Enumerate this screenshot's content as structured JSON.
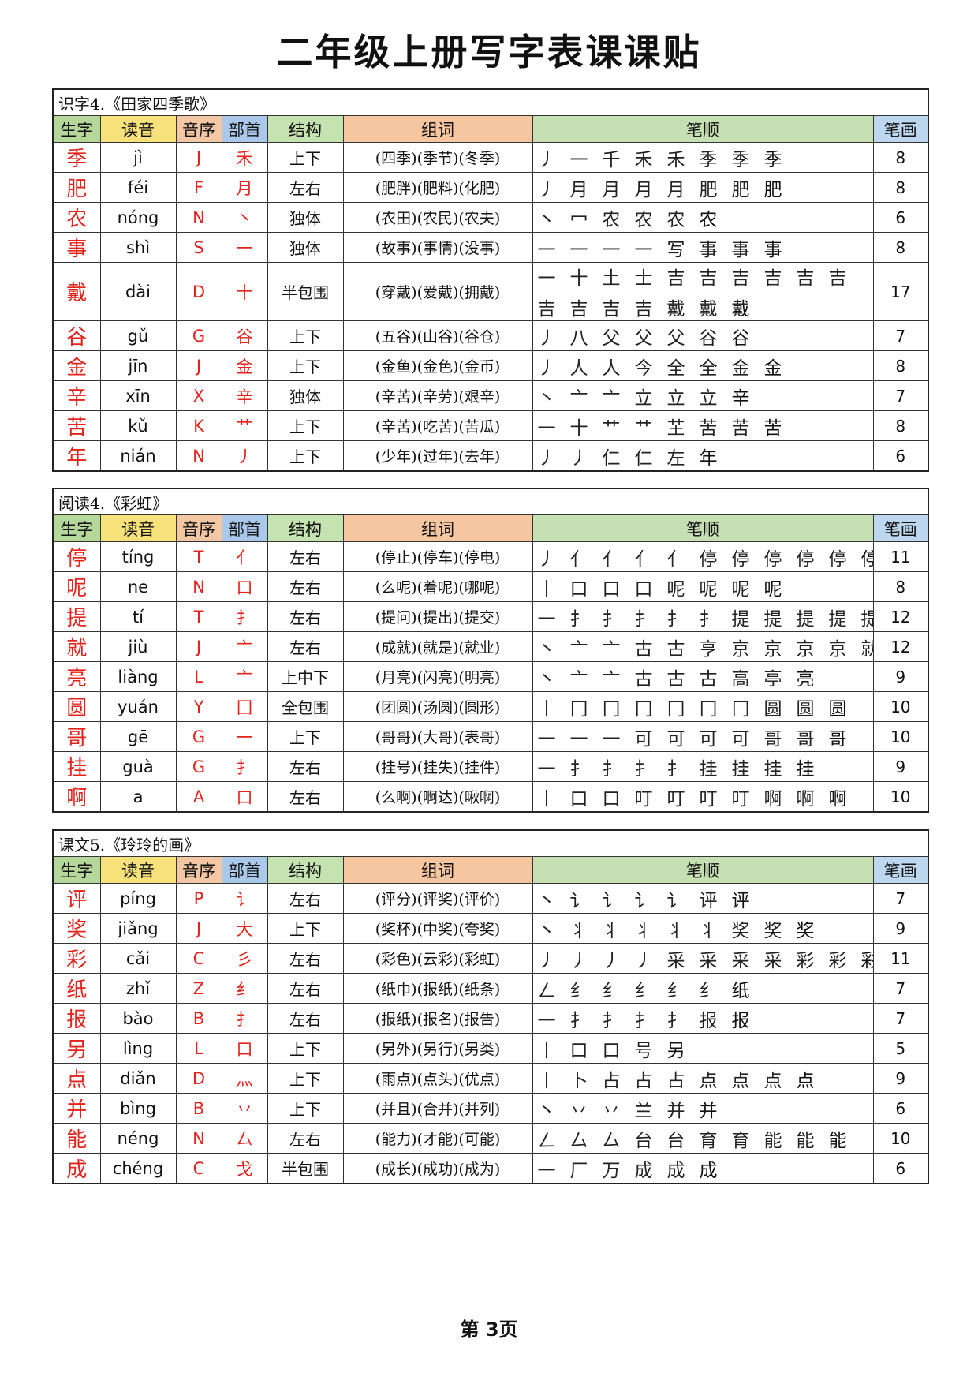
{
  "title": "二年级上册写字表课课贴",
  "headers": {
    "char": "生字",
    "pinyin": "读音",
    "order": "音序",
    "radical": "部首",
    "struct": "结构",
    "words": "组词",
    "strokes": "笔顺",
    "count": "笔画"
  },
  "sections": [
    {
      "title": "识字4.《田家四季歌》",
      "rows": [
        {
          "char": "季",
          "pinyin": "jì",
          "order": "J",
          "radical": "禾",
          "struct": "上下",
          "words": "(四季)(季节)(冬季)",
          "strokes": [
            "丿",
            "一",
            "千",
            "禾",
            "禾",
            "季",
            "季",
            "季"
          ],
          "count": "8"
        },
        {
          "char": "肥",
          "pinyin": "féi",
          "order": "F",
          "radical": "月",
          "struct": "左右",
          "words": "(肥胖)(肥料)(化肥)",
          "strokes": [
            "丿",
            "月",
            "月",
            "月",
            "月",
            "肥",
            "肥",
            "肥"
          ],
          "count": "8"
        },
        {
          "char": "农",
          "pinyin": "nóng",
          "order": "N",
          "radical": "丶",
          "struct": "独体",
          "words": "(农田)(农民)(农夫)",
          "strokes": [
            "丶",
            "冖",
            "农",
            "农",
            "农",
            "农"
          ],
          "count": "6"
        },
        {
          "char": "事",
          "pinyin": "shì",
          "order": "S",
          "radical": "一",
          "struct": "独体",
          "words": "(故事)(事情)(没事)",
          "strokes": [
            "一",
            "一",
            "一",
            "一",
            "写",
            "事",
            "事",
            "事"
          ],
          "count": "8"
        },
        {
          "char": "戴",
          "pinyin": "dài",
          "order": "D",
          "radical": "十",
          "struct": "半包围",
          "words": "(穿戴)(爱戴)(拥戴)",
          "strokes": [
            "一",
            "十",
            "土",
            "士",
            "吉",
            "吉",
            "吉",
            "吉",
            "吉",
            "吉"
          ],
          "strokes2": [
            "吉",
            "吉",
            "吉",
            "吉",
            "戴",
            "戴",
            "戴"
          ],
          "count": "17"
        },
        {
          "char": "谷",
          "pinyin": "gǔ",
          "order": "G",
          "radical": "谷",
          "struct": "上下",
          "words": "(五谷)(山谷)(谷仓)",
          "strokes": [
            "丿",
            "八",
            "父",
            "父",
            "父",
            "谷",
            "谷"
          ],
          "count": "7"
        },
        {
          "char": "金",
          "pinyin": "jīn",
          "order": "J",
          "radical": "金",
          "struct": "上下",
          "words": "(金鱼)(金色)(金币)",
          "strokes": [
            "丿",
            "人",
            "人",
            "今",
            "全",
            "全",
            "金",
            "金"
          ],
          "count": "8"
        },
        {
          "char": "辛",
          "pinyin": "xīn",
          "order": "X",
          "radical": "辛",
          "struct": "独体",
          "words": "(辛苦)(辛劳)(艰辛)",
          "strokes": [
            "丶",
            "亠",
            "亠",
            "立",
            "立",
            "立",
            "辛"
          ],
          "count": "7"
        },
        {
          "char": "苦",
          "pinyin": "kǔ",
          "order": "K",
          "radical": "艹",
          "struct": "上下",
          "words": "(辛苦)(吃苦)(苦瓜)",
          "strokes": [
            "一",
            "十",
            "艹",
            "艹",
            "芏",
            "苦",
            "苦",
            "苦"
          ],
          "count": "8"
        },
        {
          "char": "年",
          "pinyin": "nián",
          "order": "N",
          "radical": "丿",
          "struct": "上下",
          "words": "(少年)(过年)(去年)",
          "strokes": [
            "丿",
            "丿",
            "仁",
            "仁",
            "左",
            "年"
          ],
          "count": "6"
        }
      ]
    },
    {
      "title": "阅读4.《彩虹》",
      "rows": [
        {
          "char": "停",
          "pinyin": "tíng",
          "order": "T",
          "radical": "亻",
          "struct": "左右",
          "words": "(停止)(停车)(停电)",
          "strokes": [
            "丿",
            "亻",
            "亻",
            "亻",
            "亻",
            "停",
            "停",
            "停",
            "停",
            "停",
            "停"
          ],
          "count": "11"
        },
        {
          "char": "呢",
          "pinyin": "ne",
          "order": "N",
          "radical": "口",
          "struct": "左右",
          "words": "(么呢)(着呢)(哪呢)",
          "strokes": [
            "丨",
            "口",
            "口",
            "口",
            "呢",
            "呢",
            "呢",
            "呢"
          ],
          "count": "8"
        },
        {
          "char": "提",
          "pinyin": "tí",
          "order": "T",
          "radical": "扌",
          "struct": "左右",
          "words": "(提问)(提出)(提交)",
          "strokes": [
            "一",
            "扌",
            "扌",
            "扌",
            "扌",
            "扌",
            "提",
            "提",
            "提",
            "提",
            "提",
            "提"
          ],
          "count": "12"
        },
        {
          "char": "就",
          "pinyin": "jiù",
          "order": "J",
          "radical": "亠",
          "struct": "左右",
          "words": "(成就)(就是)(就业)",
          "strokes": [
            "丶",
            "亠",
            "亠",
            "古",
            "古",
            "亨",
            "京",
            "京",
            "京",
            "京",
            "就",
            "就"
          ],
          "count": "12"
        },
        {
          "char": "亮",
          "pinyin": "liàng",
          "order": "L",
          "radical": "亠",
          "struct": "上中下",
          "words": "(月亮)(闪亮)(明亮)",
          "strokes": [
            "丶",
            "亠",
            "亠",
            "古",
            "古",
            "古",
            "高",
            "亭",
            "亮"
          ],
          "count": "9"
        },
        {
          "char": "圆",
          "pinyin": "yuán",
          "order": "Y",
          "radical": "囗",
          "struct": "全包围",
          "words": "(团圆)(汤圆)(圆形)",
          "strokes": [
            "丨",
            "冂",
            "冂",
            "冂",
            "冂",
            "冂",
            "冂",
            "圆",
            "圆",
            "圆"
          ],
          "count": "10"
        },
        {
          "char": "哥",
          "pinyin": "gē",
          "order": "G",
          "radical": "一",
          "struct": "上下",
          "words": "(哥哥)(大哥)(表哥)",
          "strokes": [
            "一",
            "一",
            "一",
            "可",
            "可",
            "可",
            "可",
            "哥",
            "哥",
            "哥"
          ],
          "count": "10"
        },
        {
          "char": "挂",
          "pinyin": "guà",
          "order": "G",
          "radical": "扌",
          "struct": "左右",
          "words": "(挂号)(挂失)(挂件)",
          "strokes": [
            "一",
            "扌",
            "扌",
            "扌",
            "扌",
            "挂",
            "挂",
            "挂",
            "挂"
          ],
          "count": "9"
        },
        {
          "char": "啊",
          "pinyin": "a",
          "order": "A",
          "radical": "口",
          "struct": "左右",
          "words": "(么啊)(啊达)(啾啊)",
          "strokes": [
            "丨",
            "口",
            "口",
            "叮",
            "叮",
            "叮",
            "叮",
            "啊",
            "啊",
            "啊"
          ],
          "count": "10"
        }
      ]
    },
    {
      "title": "课文5.《玲玲的画》",
      "rows": [
        {
          "char": "评",
          "pinyin": "píng",
          "order": "P",
          "radical": "讠",
          "struct": "左右",
          "words": "(评分)(评奖)(评价)",
          "strokes": [
            "丶",
            "讠",
            "讠",
            "讠",
            "讠",
            "评",
            "评"
          ],
          "count": "7"
        },
        {
          "char": "奖",
          "pinyin": "jiǎng",
          "order": "J",
          "radical": "大",
          "struct": "上下",
          "words": "(奖杯)(中奖)(夸奖)",
          "strokes": [
            "丶",
            "丬",
            "丬",
            "丬",
            "丬",
            "丬",
            "奖",
            "奖",
            "奖"
          ],
          "count": "9"
        },
        {
          "char": "彩",
          "pinyin": "cǎi",
          "order": "C",
          "radical": "彡",
          "struct": "左右",
          "words": "(彩色)(云彩)(彩虹)",
          "strokes": [
            "丿",
            "丿",
            "丿",
            "丿",
            "采",
            "采",
            "采",
            "采",
            "彩",
            "彩",
            "彩"
          ],
          "count": "11"
        },
        {
          "char": "纸",
          "pinyin": "zhǐ",
          "order": "Z",
          "radical": "纟",
          "struct": "左右",
          "words": "(纸巾)(报纸)(纸条)",
          "strokes": [
            "ㄥ",
            "纟",
            "纟",
            "纟",
            "纟",
            "纟",
            "纸"
          ],
          "count": "7"
        },
        {
          "char": "报",
          "pinyin": "bào",
          "order": "B",
          "radical": "扌",
          "struct": "左右",
          "words": "(报纸)(报名)(报告)",
          "strokes": [
            "一",
            "扌",
            "扌",
            "扌",
            "扌",
            "报",
            "报"
          ],
          "count": "7"
        },
        {
          "char": "另",
          "pinyin": "lìng",
          "order": "L",
          "radical": "口",
          "struct": "上下",
          "words": "(另外)(另行)(另类)",
          "strokes": [
            "丨",
            "口",
            "口",
            "号",
            "另"
          ],
          "count": "5"
        },
        {
          "char": "点",
          "pinyin": "diǎn",
          "order": "D",
          "radical": "灬",
          "struct": "上下",
          "words": "(雨点)(点头)(优点)",
          "strokes": [
            "丨",
            "卜",
            "占",
            "占",
            "占",
            "点",
            "点",
            "点",
            "点"
          ],
          "count": "9"
        },
        {
          "char": "并",
          "pinyin": "bìng",
          "order": "B",
          "radical": "丷",
          "struct": "上下",
          "words": "(并且)(合并)(并列)",
          "strokes": [
            "丶",
            "丷",
            "丷",
            "兰",
            "并",
            "并"
          ],
          "count": "6"
        },
        {
          "char": "能",
          "pinyin": "néng",
          "order": "N",
          "radical": "厶",
          "struct": "左右",
          "words": "(能力)(才能)(可能)",
          "strokes": [
            "ㄥ",
            "厶",
            "厶",
            "台",
            "台",
            "育",
            "育",
            "能",
            "能",
            "能"
          ],
          "count": "10"
        },
        {
          "char": "成",
          "pinyin": "chéng",
          "order": "C",
          "radical": "戈",
          "struct": "半包围",
          "words": "(成长)(成功)(成为)",
          "strokes": [
            "一",
            "厂",
            "万",
            "成",
            "成",
            "成"
          ],
          "count": "6"
        }
      ]
    }
  ],
  "footer": "第 3页",
  "colors": {
    "red": "#e4231c",
    "char_header": "#b5d89a",
    "pinyin_header": "#f6e17a",
    "radical_header": "#a9c8ea"
  }
}
